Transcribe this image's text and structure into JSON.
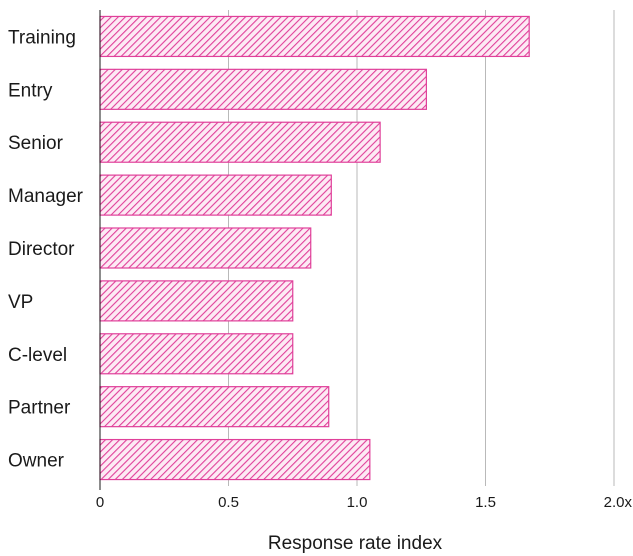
{
  "chart_data": {
    "type": "bar",
    "orientation": "horizontal",
    "categories": [
      "Training",
      "Entry",
      "Senior",
      "Manager",
      "Director",
      "VP",
      "C-level",
      "Partner",
      "Owner"
    ],
    "values": [
      1.67,
      1.27,
      1.09,
      0.9,
      0.82,
      0.75,
      0.75,
      0.89,
      1.05
    ],
    "xlabel": "Response rate index",
    "ylabel": "",
    "xlim": [
      0,
      2.0
    ],
    "xticks": [
      0,
      0.5,
      1.0,
      1.5,
      2.0
    ],
    "xtick_labels": [
      "0",
      "0.5",
      "1.0",
      "1.5",
      "2.0x"
    ],
    "grid": "vertical",
    "bar_pattern": "diagonal-hatch",
    "bar_color": "#e0409a",
    "legend": "none"
  }
}
